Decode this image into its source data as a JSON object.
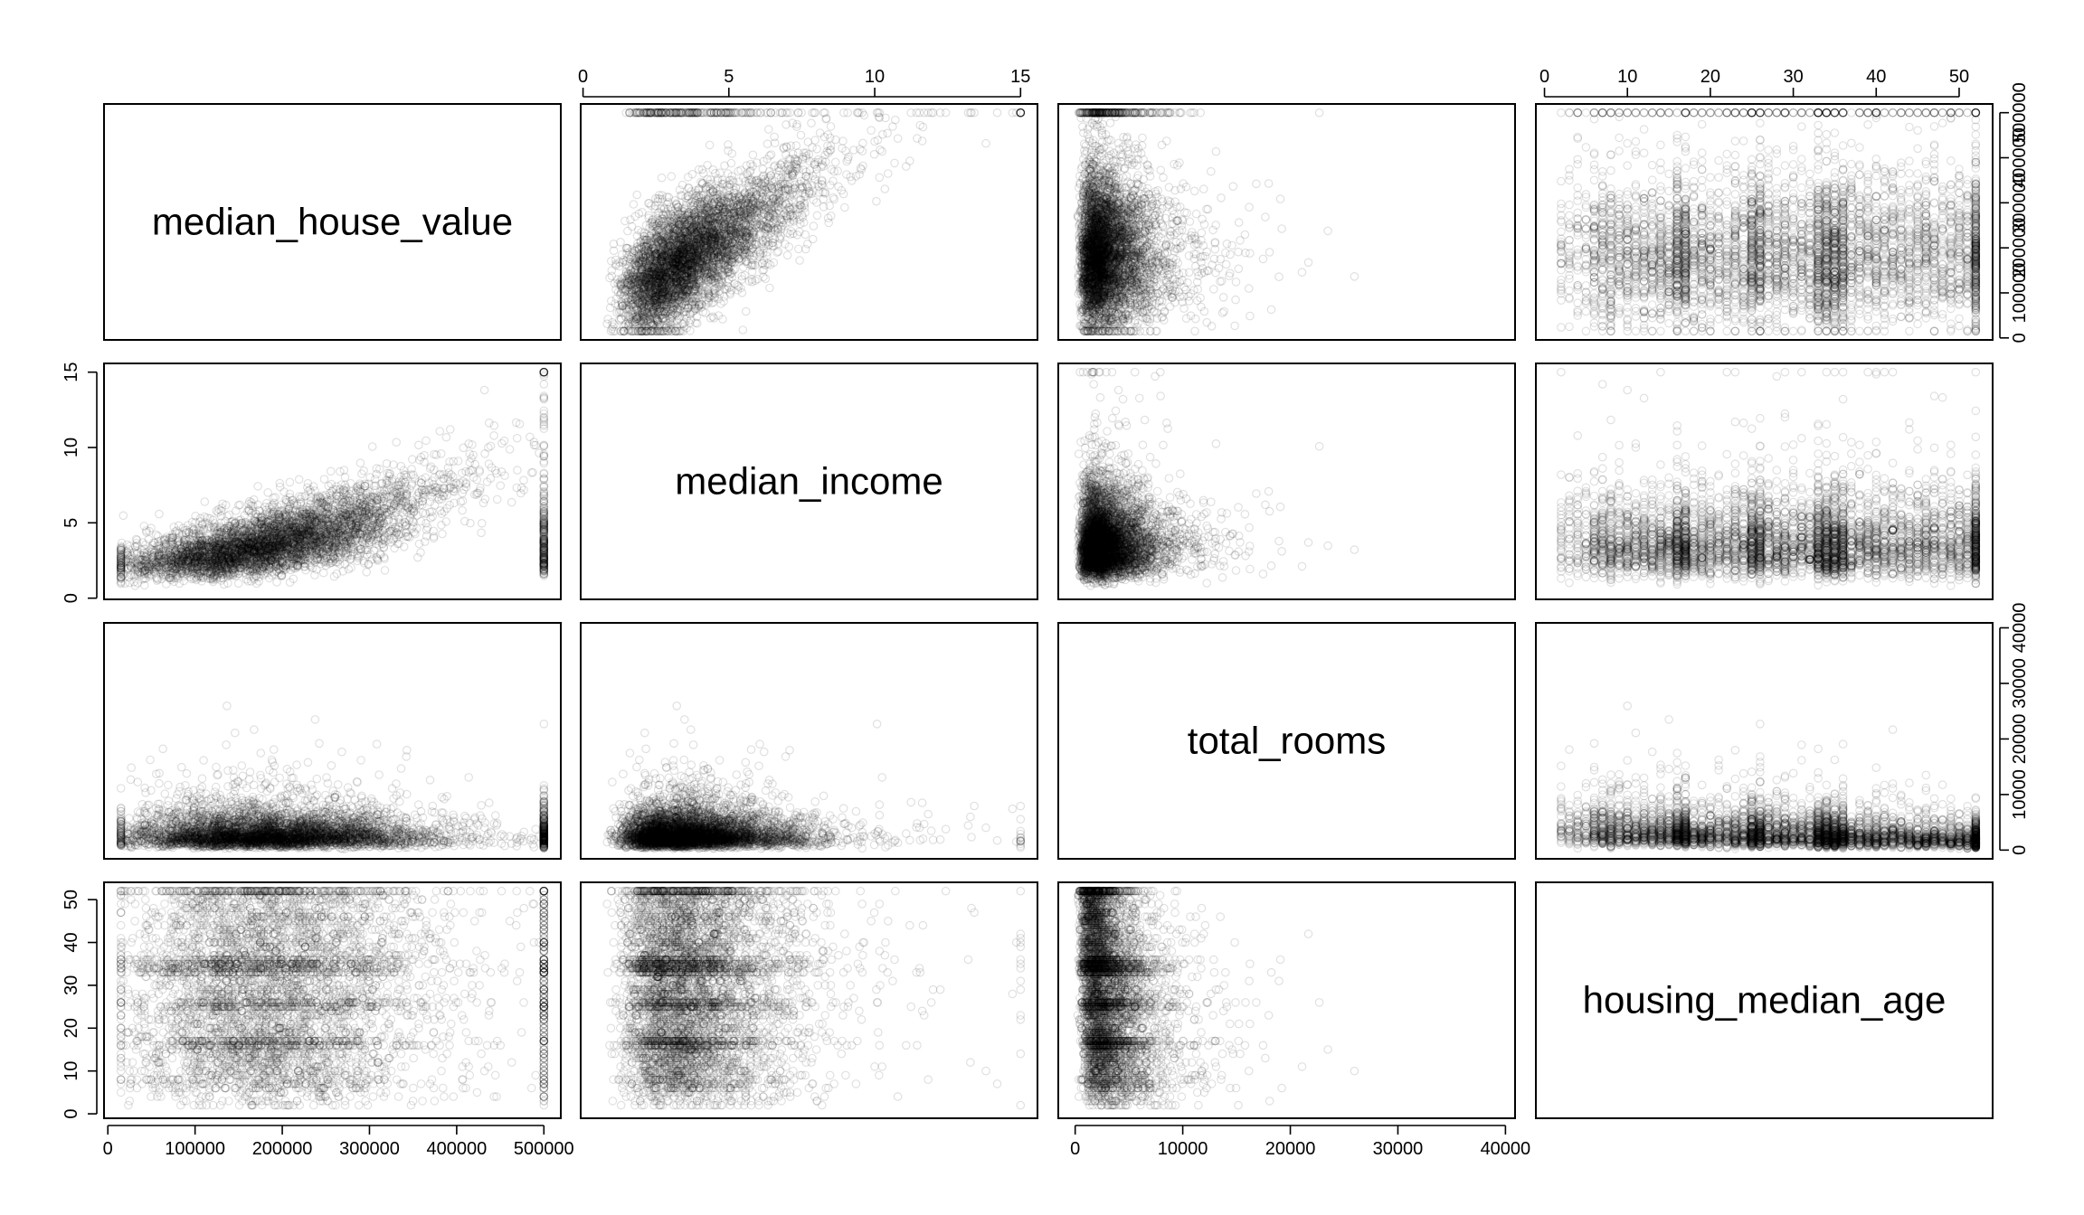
{
  "chart_data": {
    "type": "scatter",
    "title": "",
    "layout": "scatterplot-matrix",
    "point_style": "open-circle",
    "point_color": "#000000",
    "point_opacity": 0.12,
    "variables": [
      {
        "name": "median_house_value",
        "range": [
          14999,
          500001
        ],
        "ticks": [
          0,
          100000,
          200000,
          300000,
          400000,
          500000
        ],
        "tick_labels": [
          "0",
          "100000",
          "200000",
          "300000",
          "400000",
          "500000"
        ]
      },
      {
        "name": "median_income",
        "range": [
          0.5,
          15.0
        ],
        "ticks": [
          0,
          5,
          10,
          15
        ],
        "tick_labels": [
          "0",
          "5",
          "10",
          "15"
        ]
      },
      {
        "name": "total_rooms",
        "range": [
          2,
          39320
        ],
        "ticks": [
          0,
          10000,
          20000,
          30000,
          40000
        ],
        "tick_labels": [
          "0",
          "10000",
          "20000",
          "30000",
          "40000"
        ]
      },
      {
        "name": "housing_median_age",
        "range": [
          1,
          52
        ],
        "ticks": [
          0,
          10,
          20,
          30,
          40,
          50
        ],
        "tick_labels": [
          "0",
          "10",
          "20",
          "30",
          "40",
          "50"
        ]
      }
    ],
    "axes": {
      "top": [
        1,
        3
      ],
      "bottom": [
        0,
        2
      ],
      "left": [
        1,
        3
      ],
      "right": [
        0,
        2
      ]
    }
  }
}
